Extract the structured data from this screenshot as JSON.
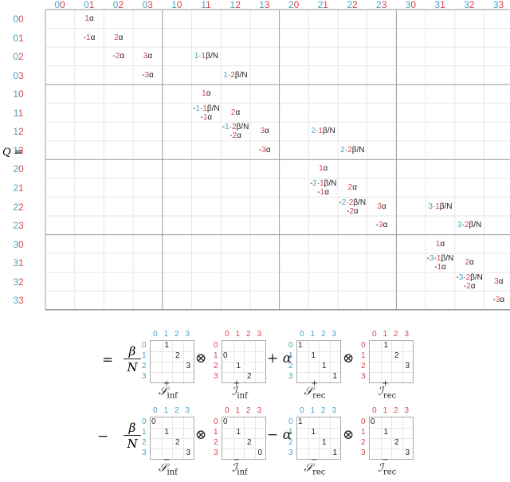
{
  "matrix_label": "Q =",
  "block_labels": [
    "00",
    "01",
    "02",
    "03",
    "10",
    "11",
    "12",
    "13",
    "20",
    "21",
    "22",
    "23",
    "30",
    "31",
    "32",
    "33"
  ],
  "entries": [
    {
      "row": 0,
      "col": 1,
      "lines": [
        [
          [
            "1",
            "red"
          ],
          [
            "α",
            "dark"
          ]
        ]
      ]
    },
    {
      "row": 1,
      "col": 1,
      "lines": [
        [
          [
            "-",
            "dark"
          ],
          [
            "1",
            "red"
          ],
          [
            "α",
            "dark"
          ]
        ]
      ]
    },
    {
      "row": 1,
      "col": 2,
      "lines": [
        [
          [
            "2",
            "red"
          ],
          [
            "α",
            "dark"
          ]
        ]
      ]
    },
    {
      "row": 2,
      "col": 2,
      "lines": [
        [
          [
            "-",
            "dark"
          ],
          [
            "2",
            "red"
          ],
          [
            "α",
            "dark"
          ]
        ]
      ]
    },
    {
      "row": 2,
      "col": 3,
      "lines": [
        [
          [
            "3",
            "red"
          ],
          [
            "α",
            "dark"
          ]
        ]
      ]
    },
    {
      "row": 2,
      "col": 5,
      "lines": [
        [
          [
            "1",
            "blue"
          ],
          [
            "·",
            "dark"
          ],
          [
            "1",
            "red"
          ],
          [
            "β/N",
            "dark"
          ]
        ]
      ]
    },
    {
      "row": 3,
      "col": 3,
      "lines": [
        [
          [
            "-",
            "dark"
          ],
          [
            "3",
            "red"
          ],
          [
            "α",
            "dark"
          ]
        ]
      ]
    },
    {
      "row": 3,
      "col": 6,
      "lines": [
        [
          [
            "1",
            "blue"
          ],
          [
            "·",
            "dark"
          ],
          [
            "2",
            "red"
          ],
          [
            "β/N",
            "dark"
          ]
        ]
      ]
    },
    {
      "row": 4,
      "col": 5,
      "lines": [
        [
          [
            "1",
            "red"
          ],
          [
            "α",
            "dark"
          ]
        ]
      ]
    },
    {
      "row": 5,
      "col": 5,
      "lines": [
        [
          [
            "-",
            "dark"
          ],
          [
            "1",
            "blue"
          ],
          [
            "·",
            "dark"
          ],
          [
            "1",
            "red"
          ],
          [
            "β/N",
            "dark"
          ]
        ],
        [
          [
            "-",
            "dark"
          ],
          [
            "1",
            "red"
          ],
          [
            "α",
            "dark"
          ]
        ]
      ]
    },
    {
      "row": 5,
      "col": 6,
      "lines": [
        [
          [
            "2",
            "red"
          ],
          [
            "α",
            "dark"
          ]
        ]
      ]
    },
    {
      "row": 6,
      "col": 6,
      "lines": [
        [
          [
            "-",
            "dark"
          ],
          [
            "1",
            "blue"
          ],
          [
            "·",
            "dark"
          ],
          [
            "2",
            "red"
          ],
          [
            "β/N",
            "dark"
          ]
        ],
        [
          [
            "-",
            "dark"
          ],
          [
            "2",
            "red"
          ],
          [
            "α",
            "dark"
          ]
        ]
      ]
    },
    {
      "row": 6,
      "col": 7,
      "lines": [
        [
          [
            "3",
            "red"
          ],
          [
            "α",
            "dark"
          ]
        ]
      ]
    },
    {
      "row": 6,
      "col": 9,
      "lines": [
        [
          [
            "2",
            "blue"
          ],
          [
            "·",
            "dark"
          ],
          [
            "1",
            "red"
          ],
          [
            "β/N",
            "dark"
          ]
        ]
      ]
    },
    {
      "row": 7,
      "col": 7,
      "lines": [
        [
          [
            "-",
            "dark"
          ],
          [
            "3",
            "red"
          ],
          [
            "α",
            "dark"
          ]
        ]
      ]
    },
    {
      "row": 7,
      "col": 10,
      "lines": [
        [
          [
            "2",
            "blue"
          ],
          [
            "·",
            "dark"
          ],
          [
            "2",
            "red"
          ],
          [
            "β/N",
            "dark"
          ]
        ]
      ]
    },
    {
      "row": 8,
      "col": 9,
      "lines": [
        [
          [
            "1",
            "red"
          ],
          [
            "α",
            "dark"
          ]
        ]
      ]
    },
    {
      "row": 9,
      "col": 9,
      "lines": [
        [
          [
            "-",
            "dark"
          ],
          [
            "2",
            "blue"
          ],
          [
            "·",
            "dark"
          ],
          [
            "1",
            "red"
          ],
          [
            "β/N",
            "dark"
          ]
        ],
        [
          [
            "-",
            "dark"
          ],
          [
            "1",
            "red"
          ],
          [
            "α",
            "dark"
          ]
        ]
      ]
    },
    {
      "row": 9,
      "col": 10,
      "lines": [
        [
          [
            "2",
            "red"
          ],
          [
            "α",
            "dark"
          ]
        ]
      ]
    },
    {
      "row": 10,
      "col": 10,
      "lines": [
        [
          [
            "-",
            "dark"
          ],
          [
            "2",
            "blue"
          ],
          [
            "·",
            "dark"
          ],
          [
            "2",
            "red"
          ],
          [
            "β/N",
            "dark"
          ]
        ],
        [
          [
            "-",
            "dark"
          ],
          [
            "2",
            "red"
          ],
          [
            "α",
            "dark"
          ]
        ]
      ]
    },
    {
      "row": 10,
      "col": 11,
      "lines": [
        [
          [
            "3",
            "red"
          ],
          [
            "α",
            "dark"
          ]
        ]
      ]
    },
    {
      "row": 10,
      "col": 13,
      "lines": [
        [
          [
            "3",
            "blue"
          ],
          [
            "·",
            "dark"
          ],
          [
            "1",
            "red"
          ],
          [
            "β/N",
            "dark"
          ]
        ]
      ]
    },
    {
      "row": 11,
      "col": 11,
      "lines": [
        [
          [
            "-",
            "dark"
          ],
          [
            "3",
            "red"
          ],
          [
            "α",
            "dark"
          ]
        ]
      ]
    },
    {
      "row": 11,
      "col": 14,
      "lines": [
        [
          [
            "3",
            "blue"
          ],
          [
            "·",
            "dark"
          ],
          [
            "2",
            "red"
          ],
          [
            "β/N",
            "dark"
          ]
        ]
      ]
    },
    {
      "row": 12,
      "col": 13,
      "lines": [
        [
          [
            "1",
            "red"
          ],
          [
            "α",
            "dark"
          ]
        ]
      ]
    },
    {
      "row": 13,
      "col": 13,
      "lines": [
        [
          [
            "-",
            "dark"
          ],
          [
            "3",
            "blue"
          ],
          [
            "·",
            "dark"
          ],
          [
            "1",
            "red"
          ],
          [
            "β/N",
            "dark"
          ]
        ],
        [
          [
            "-",
            "dark"
          ],
          [
            "1",
            "red"
          ],
          [
            "α",
            "dark"
          ]
        ]
      ]
    },
    {
      "row": 13,
      "col": 14,
      "lines": [
        [
          [
            "2",
            "red"
          ],
          [
            "α",
            "dark"
          ]
        ]
      ]
    },
    {
      "row": 14,
      "col": 14,
      "lines": [
        [
          [
            "-",
            "dark"
          ],
          [
            "3",
            "blue"
          ],
          [
            "·",
            "dark"
          ],
          [
            "2",
            "red"
          ],
          [
            "β/N",
            "dark"
          ]
        ],
        [
          [
            "-",
            "dark"
          ],
          [
            "2",
            "red"
          ],
          [
            "α",
            "dark"
          ]
        ]
      ]
    },
    {
      "row": 14,
      "col": 15,
      "lines": [
        [
          [
            "3",
            "red"
          ],
          [
            "α",
            "dark"
          ]
        ]
      ]
    },
    {
      "row": 15,
      "col": 15,
      "lines": [
        [
          [
            "-",
            "dark"
          ],
          [
            "3",
            "red"
          ],
          [
            "α",
            "dark"
          ]
        ]
      ]
    }
  ],
  "equation": {
    "row1": {
      "lead_op": "=",
      "frac_num": "β",
      "frac_den": "N",
      "ops": [
        "⊗",
        "+ α",
        "⊗"
      ],
      "matrices": [
        {
          "id": "S_inf_plus",
          "cap": "𝒮",
          "sub": "inf",
          "sup": "+",
          "color": "blue",
          "cells": [
            [
              0,
              1,
              "1"
            ],
            [
              1,
              2,
              "2"
            ],
            [
              2,
              3,
              "3"
            ]
          ]
        },
        {
          "id": "I_inf_plus",
          "cap": "ℐ",
          "sub": "inf",
          "sup": "+",
          "color": "red",
          "cells": [
            [
              1,
              0,
              "0"
            ],
            [
              2,
              1,
              "1"
            ],
            [
              3,
              2,
              "2"
            ]
          ]
        },
        {
          "id": "S_rec_plus",
          "cap": "𝒮",
          "sub": "rec",
          "sup": "+",
          "color": "blue",
          "cells": [
            [
              0,
              0,
              "1"
            ],
            [
              1,
              1,
              "1"
            ],
            [
              2,
              2,
              "1"
            ],
            [
              3,
              3,
              "1"
            ]
          ]
        },
        {
          "id": "I_rec_plus",
          "cap": "ℐ",
          "sub": "rec",
          "sup": "+",
          "color": "red",
          "cells": [
            [
              0,
              1,
              "1"
            ],
            [
              1,
              2,
              "2"
            ],
            [
              2,
              3,
              "3"
            ]
          ]
        }
      ]
    },
    "row2": {
      "lead_op": "−",
      "frac_num": "β",
      "frac_den": "N",
      "ops": [
        "⊗",
        "− α",
        "⊗"
      ],
      "matrices": [
        {
          "id": "S_inf_minus",
          "cap": "𝒮",
          "sub": "inf",
          "sup": "−",
          "color": "blue",
          "cells": [
            [
              0,
              0,
              "0"
            ],
            [
              1,
              1,
              "1"
            ],
            [
              2,
              2,
              "2"
            ],
            [
              3,
              3,
              "3"
            ]
          ]
        },
        {
          "id": "I_inf_minus",
          "cap": "ℐ",
          "sub": "inf",
          "sup": "−",
          "color": "red",
          "cells": [
            [
              0,
              0,
              "0"
            ],
            [
              1,
              1,
              "1"
            ],
            [
              2,
              2,
              "2"
            ],
            [
              3,
              3,
              "0"
            ]
          ]
        },
        {
          "id": "S_rec_minus",
          "cap": "𝒮",
          "sub": "rec",
          "sup": "−",
          "color": "blue",
          "cells": [
            [
              0,
              0,
              "1"
            ],
            [
              1,
              1,
              "1"
            ],
            [
              2,
              2,
              "1"
            ],
            [
              3,
              3,
              "1"
            ]
          ]
        },
        {
          "id": "I_rec_minus",
          "cap": "ℐ",
          "sub": "rec",
          "sup": "−",
          "color": "red",
          "cells": [
            [
              0,
              0,
              "0"
            ],
            [
              1,
              1,
              "1"
            ],
            [
              2,
              2,
              "2"
            ],
            [
              3,
              3,
              "3"
            ]
          ]
        }
      ]
    },
    "index_labels": [
      "0",
      "1",
      "2",
      "3"
    ]
  },
  "colors": {
    "blue": "#4aa3c8",
    "red": "#d9454e",
    "grid": "#e6e6e6",
    "block": "#999999"
  }
}
